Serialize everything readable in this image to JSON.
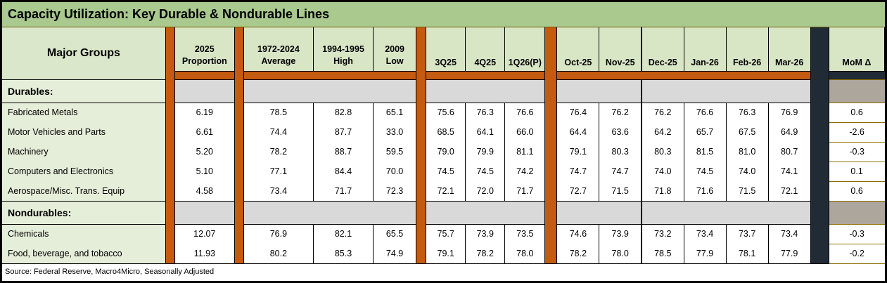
{
  "title": "Capacity Utilization: Key Durable & Nondurable Lines",
  "source_note": "Source: Federal Reserve, Macro4Micro, Seasonally Adjusted",
  "columns": {
    "major_groups": "Major Groups",
    "proportion": {
      "line1": "2025",
      "line2": "Proportion"
    },
    "average": {
      "line1": "1972-2024",
      "line2": "Average"
    },
    "high": {
      "line1": "1994-1995",
      "line2": "High"
    },
    "low": {
      "line1": "2009",
      "line2": "Low"
    },
    "quarters": [
      "3Q25",
      "4Q25",
      "1Q26(P)"
    ],
    "months": [
      "Oct-25",
      "Nov-25",
      "Dec-25",
      "Jan-26",
      "Feb-26",
      "Mar-26"
    ],
    "mom": "MoM Δ"
  },
  "sections": [
    {
      "label": "Durables:",
      "rows": [
        {
          "name": "Fabricated Metals",
          "proportion": "6.19",
          "average": "78.5",
          "high": "82.8",
          "low": "65.1",
          "quarters": [
            "75.6",
            "76.3",
            "76.6"
          ],
          "months": [
            "76.4",
            "76.2",
            "76.2",
            "76.6",
            "76.3",
            "76.9"
          ],
          "mom": "0.6"
        },
        {
          "name": "Motor Vehicles and Parts",
          "proportion": "6.61",
          "average": "74.4",
          "high": "87.7",
          "low": "33.0",
          "quarters": [
            "68.5",
            "64.1",
            "66.0"
          ],
          "months": [
            "64.4",
            "63.6",
            "64.2",
            "65.7",
            "67.5",
            "64.9"
          ],
          "mom": "-2.6"
        },
        {
          "name": "Machinery",
          "proportion": "5.20",
          "average": "78.2",
          "high": "88.7",
          "low": "59.5",
          "quarters": [
            "79.0",
            "79.9",
            "81.1"
          ],
          "months": [
            "79.1",
            "80.3",
            "80.3",
            "81.5",
            "81.0",
            "80.7"
          ],
          "mom": "-0.3"
        },
        {
          "name": "Computers and Electronics",
          "proportion": "5.10",
          "average": "77.1",
          "high": "84.4",
          "low": "70.0",
          "quarters": [
            "74.5",
            "74.5",
            "74.2"
          ],
          "months": [
            "74.7",
            "74.7",
            "74.0",
            "74.5",
            "74.0",
            "74.1"
          ],
          "mom": "0.1"
        },
        {
          "name": "Aerospace/Misc. Trans. Equip",
          "proportion": "4.58",
          "average": "73.4",
          "high": "71.7",
          "low": "72.3",
          "quarters": [
            "72.1",
            "72.0",
            "71.7"
          ],
          "months": [
            "72.7",
            "71.5",
            "71.8",
            "71.6",
            "71.5",
            "72.1"
          ],
          "mom": "0.6"
        }
      ]
    },
    {
      "label": "Nondurables:",
      "rows": [
        {
          "name": "Chemicals",
          "proportion": "12.07",
          "average": "76.9",
          "high": "82.1",
          "low": "65.5",
          "quarters": [
            "75.7",
            "73.9",
            "73.5"
          ],
          "months": [
            "74.6",
            "73.9",
            "73.2",
            "73.4",
            "73.7",
            "73.4"
          ],
          "mom": "-0.3"
        },
        {
          "name": "Food, beverage, and tobacco",
          "proportion": "11.93",
          "average": "80.2",
          "high": "85.3",
          "low": "74.9",
          "quarters": [
            "79.1",
            "78.2",
            "78.0"
          ],
          "months": [
            "78.2",
            "78.0",
            "78.5",
            "77.9",
            "78.1",
            "77.9"
          ],
          "mom": "-0.2"
        }
      ]
    }
  ],
  "colors": {
    "title_bar_green": "#a9c98e",
    "header_green": "#d9e6c6",
    "row_label_green": "#e5eed9",
    "separator_orange": "#c55a11",
    "section_gray": "#d9d9d9",
    "mom_section_taupe": "#ada69d",
    "dark_bar": "#212b35",
    "mom_border_gold": "#8b6f00",
    "grid_black": "#000000"
  }
}
